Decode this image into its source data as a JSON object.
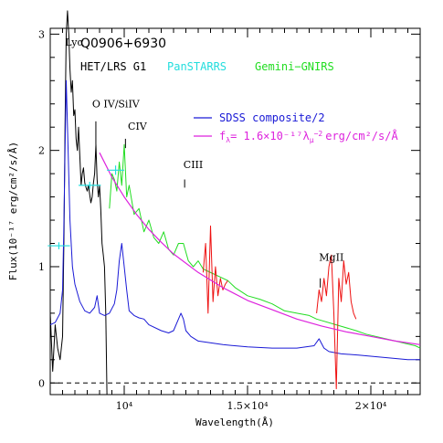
{
  "chart_data": {
    "type": "line",
    "title": "Q0906+6930",
    "xlabel": "Wavelength(Å)",
    "ylabel": "Flux(10⁻¹⁷ erg/cm²/s/Å)",
    "xlim": [
      7000,
      22000
    ],
    "ylim": [
      -0.1,
      3.05
    ],
    "x_ticks": [
      {
        "value": 10000,
        "label": "10⁴"
      },
      {
        "value": 15000,
        "label": "1.5×10⁴"
      },
      {
        "value": 20000,
        "label": "2×10⁴"
      }
    ],
    "y_ticks": [
      {
        "value": 0,
        "label": "0"
      },
      {
        "value": 1,
        "label": "1"
      },
      {
        "value": 2,
        "label": "2"
      },
      {
        "value": 3,
        "label": "3"
      }
    ],
    "zero_line": 0,
    "legend": {
      "inst_prefix": "HET/LRS G1",
      "panstarrs": "PanSTARRS",
      "gemini": "Gemini−GNIRS",
      "sdss": "SDSS composite/2",
      "fit_prefix": "f",
      "fit_sub": "λ",
      "fit_mid": "= 1.6×10⁻¹⁷λ",
      "fit_sub2": "μ",
      "fit_sup": "−2",
      "fit_units": "erg/cm²/s/Å"
    },
    "annotations": [
      {
        "text": "Lyα",
        "x": 7600,
        "y": 2.9
      },
      {
        "text": "O IV/SiIV",
        "x": 8700,
        "y": 2.37
      },
      {
        "text": "CIV",
        "x": 10150,
        "y": 2.18
      },
      {
        "text": "CIII",
        "x": 12400,
        "y": 1.85
      },
      {
        "text": "MgII",
        "x": 17900,
        "y": 1.05
      }
    ],
    "marker_lines": [
      {
        "x": 8850,
        "y1": 2.05,
        "y2": 2.25
      },
      {
        "x": 10050,
        "y1": 2.02,
        "y2": 2.1
      },
      {
        "x": 12450,
        "y1": 1.68,
        "y2": 1.75
      },
      {
        "x": 17950,
        "y1": 0.82,
        "y2": 0.9
      }
    ],
    "colors": {
      "het": "#000000",
      "sdss": "#1a1ad6",
      "gemini": "#22dd22",
      "gemini_telluric": "#ee1111",
      "fit": "#dd22dd",
      "panstarrs": "#22dddd"
    },
    "series": [
      {
        "name": "HET/LRS G1",
        "x": [
          7000,
          7100,
          7200,
          7300,
          7400,
          7500,
          7560,
          7600,
          7650,
          7700,
          7750,
          7800,
          7850,
          7900,
          7950,
          8000,
          8050,
          8100,
          8150,
          8200,
          8250,
          8300,
          8350,
          8400,
          8450,
          8500,
          8550,
          8600,
          8650,
          8700,
          8750,
          8800,
          8850,
          8900,
          8950,
          9000,
          9050,
          9100,
          9150,
          9200,
          9250,
          9300
        ],
        "y": [
          0.6,
          0.1,
          0.5,
          0.3,
          0.2,
          0.4,
          1.3,
          2.2,
          3.0,
          3.2,
          3.0,
          2.7,
          2.5,
          2.6,
          2.3,
          2.35,
          2.1,
          2.0,
          2.2,
          1.95,
          1.7,
          1.8,
          1.85,
          1.72,
          1.68,
          1.65,
          1.7,
          1.62,
          1.55,
          1.6,
          1.72,
          1.8,
          2.05,
          1.75,
          1.6,
          1.7,
          1.5,
          1.2,
          1.1,
          1.0,
          0.6,
          -0.1
        ]
      },
      {
        "name": "SDSS composite/2",
        "x": [
          7000,
          7200,
          7400,
          7500,
          7550,
          7600,
          7650,
          7700,
          7800,
          7900,
          8000,
          8200,
          8400,
          8600,
          8800,
          8900,
          9000,
          9200,
          9400,
          9600,
          9700,
          9800,
          9900,
          10000,
          10100,
          10200,
          10400,
          10600,
          10800,
          11000,
          11500,
          11800,
          12000,
          12200,
          12300,
          12400,
          12500,
          12700,
          13000,
          14000,
          15000,
          16000,
          17000,
          17700,
          17900,
          18100,
          18300,
          18800,
          19500,
          20500,
          21500,
          22000
        ],
        "y": [
          0.5,
          0.52,
          0.6,
          0.8,
          1.3,
          2.0,
          2.6,
          2.2,
          1.4,
          1.0,
          0.85,
          0.7,
          0.62,
          0.6,
          0.65,
          0.75,
          0.6,
          0.58,
          0.6,
          0.68,
          0.8,
          1.05,
          1.2,
          1.0,
          0.8,
          0.62,
          0.58,
          0.56,
          0.55,
          0.5,
          0.45,
          0.43,
          0.45,
          0.55,
          0.6,
          0.55,
          0.45,
          0.4,
          0.36,
          0.33,
          0.31,
          0.3,
          0.3,
          0.32,
          0.38,
          0.3,
          0.27,
          0.25,
          0.24,
          0.22,
          0.2,
          0.2
        ]
      },
      {
        "name": "Gemini−GNIRS",
        "x": [
          9400,
          9500,
          9600,
          9700,
          9800,
          9900,
          10000,
          10100,
          10200,
          10400,
          10600,
          10800,
          11000,
          11200,
          11400,
          11600,
          11800,
          12000,
          12200,
          12400,
          12600,
          12800,
          13000,
          13200,
          14200,
          14500,
          15000,
          15500,
          16000,
          16500,
          17000,
          17500,
          17800,
          19400,
          19800,
          20200,
          20600,
          21000,
          21400,
          21800,
          22000
        ],
        "y": [
          1.5,
          1.8,
          1.75,
          1.65,
          1.9,
          1.7,
          2.05,
          1.6,
          1.7,
          1.45,
          1.5,
          1.3,
          1.4,
          1.25,
          1.2,
          1.3,
          1.15,
          1.1,
          1.2,
          1.2,
          1.05,
          1.0,
          1.05,
          0.98,
          0.88,
          0.82,
          0.75,
          0.72,
          0.68,
          0.62,
          0.6,
          0.58,
          0.55,
          0.45,
          0.42,
          0.4,
          0.38,
          0.36,
          0.34,
          0.32,
          0.3
        ]
      },
      {
        "name": "Gemini−GNIRS (telluric)",
        "x": [
          13200,
          13300,
          13400,
          13500,
          13600,
          13700,
          13800,
          13900,
          14000,
          14100,
          14200
        ],
        "y": [
          0.95,
          1.2,
          0.6,
          1.35,
          0.7,
          1.0,
          0.75,
          0.9,
          0.8,
          0.85,
          0.88
        ]
      },
      {
        "name": "Gemini−GNIRS (telluric)",
        "x": [
          17800,
          17900,
          18000,
          18100,
          18200,
          18300,
          18400,
          18500,
          18600,
          18700,
          18800,
          18900,
          19000,
          19100,
          19200,
          19300,
          19400
        ],
        "y": [
          0.6,
          0.8,
          0.7,
          0.9,
          0.75,
          1.0,
          1.1,
          0.6,
          -0.05,
          0.9,
          0.7,
          1.05,
          0.85,
          0.95,
          0.7,
          0.6,
          0.55
        ]
      },
      {
        "name": "fλ = 1.6×10⁻¹⁷λμ⁻² erg/cm²/s/Å",
        "x": [
          9000,
          9500,
          10000,
          10500,
          11000,
          11500,
          12000,
          13000,
          14000,
          15000,
          16000,
          17000,
          18000,
          19000,
          20000,
          21000,
          22000
        ],
        "y": [
          1.98,
          1.77,
          1.6,
          1.45,
          1.32,
          1.21,
          1.11,
          0.95,
          0.82,
          0.71,
          0.63,
          0.55,
          0.49,
          0.44,
          0.4,
          0.36,
          0.33
        ]
      }
    ],
    "panstarrs_points": [
      {
        "x": 7350,
        "y": 1.18,
        "xerr": 450,
        "yerr": 0.03
      },
      {
        "x": 8600,
        "y": 1.7,
        "xerr": 450,
        "yerr": 0.03
      },
      {
        "x": 9650,
        "y": 1.83,
        "xerr": 350,
        "yerr": 0.04
      }
    ]
  }
}
